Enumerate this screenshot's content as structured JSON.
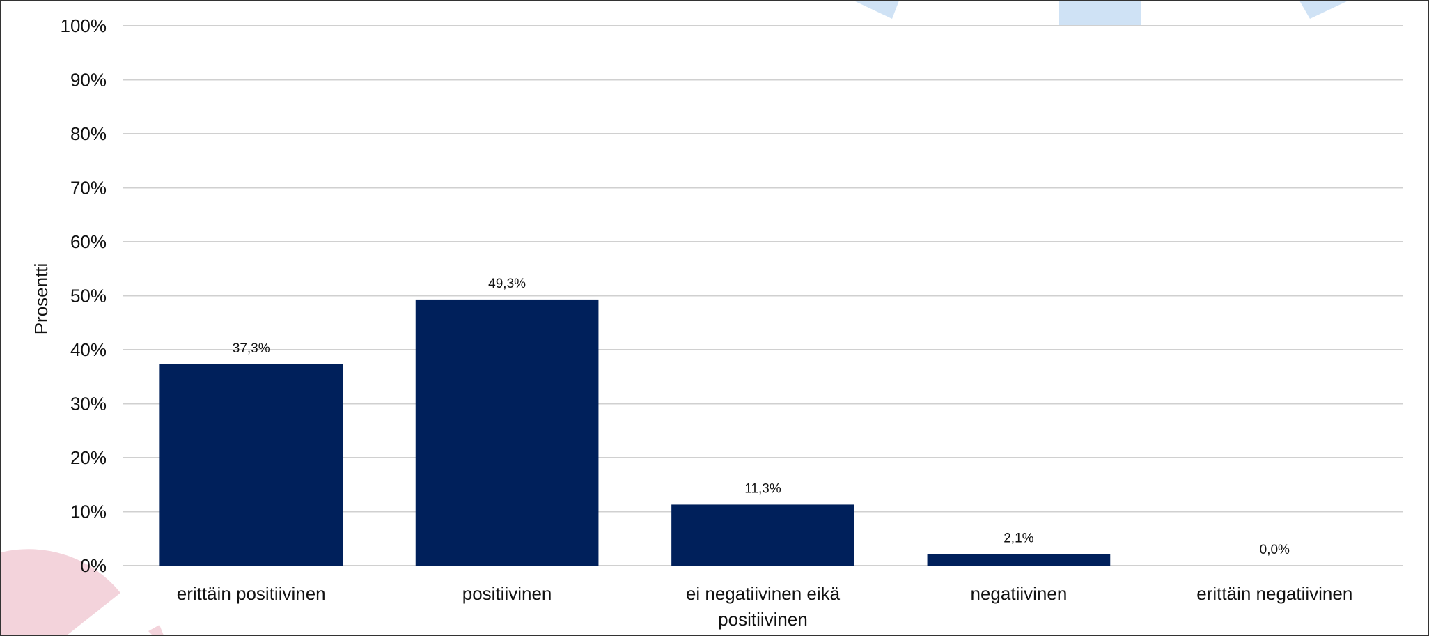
{
  "colors": {
    "bar": "#00205b",
    "grid": "#d0d0d0",
    "decor_blue": "#cfe2f5",
    "decor_pink": "#f3d3db"
  },
  "chart_data": {
    "type": "bar",
    "ylabel": "Prosentti",
    "ylim": [
      0,
      100
    ],
    "yticks": [
      "0%",
      "10%",
      "20%",
      "30%",
      "40%",
      "50%",
      "60%",
      "70%",
      "80%",
      "90%",
      "100%"
    ],
    "grid": true,
    "categories": [
      [
        "erittäin positiivinen"
      ],
      [
        "positiivinen"
      ],
      [
        "ei negatiivinen eikä",
        "positiivinen"
      ],
      [
        "negatiivinen"
      ],
      [
        "erittäin negatiivinen"
      ]
    ],
    "values": [
      37.3,
      49.3,
      11.3,
      2.1,
      0.0
    ],
    "data_labels": [
      "37,3%",
      "49,3%",
      "11,3%",
      "2,1%",
      "0,0%"
    ]
  }
}
